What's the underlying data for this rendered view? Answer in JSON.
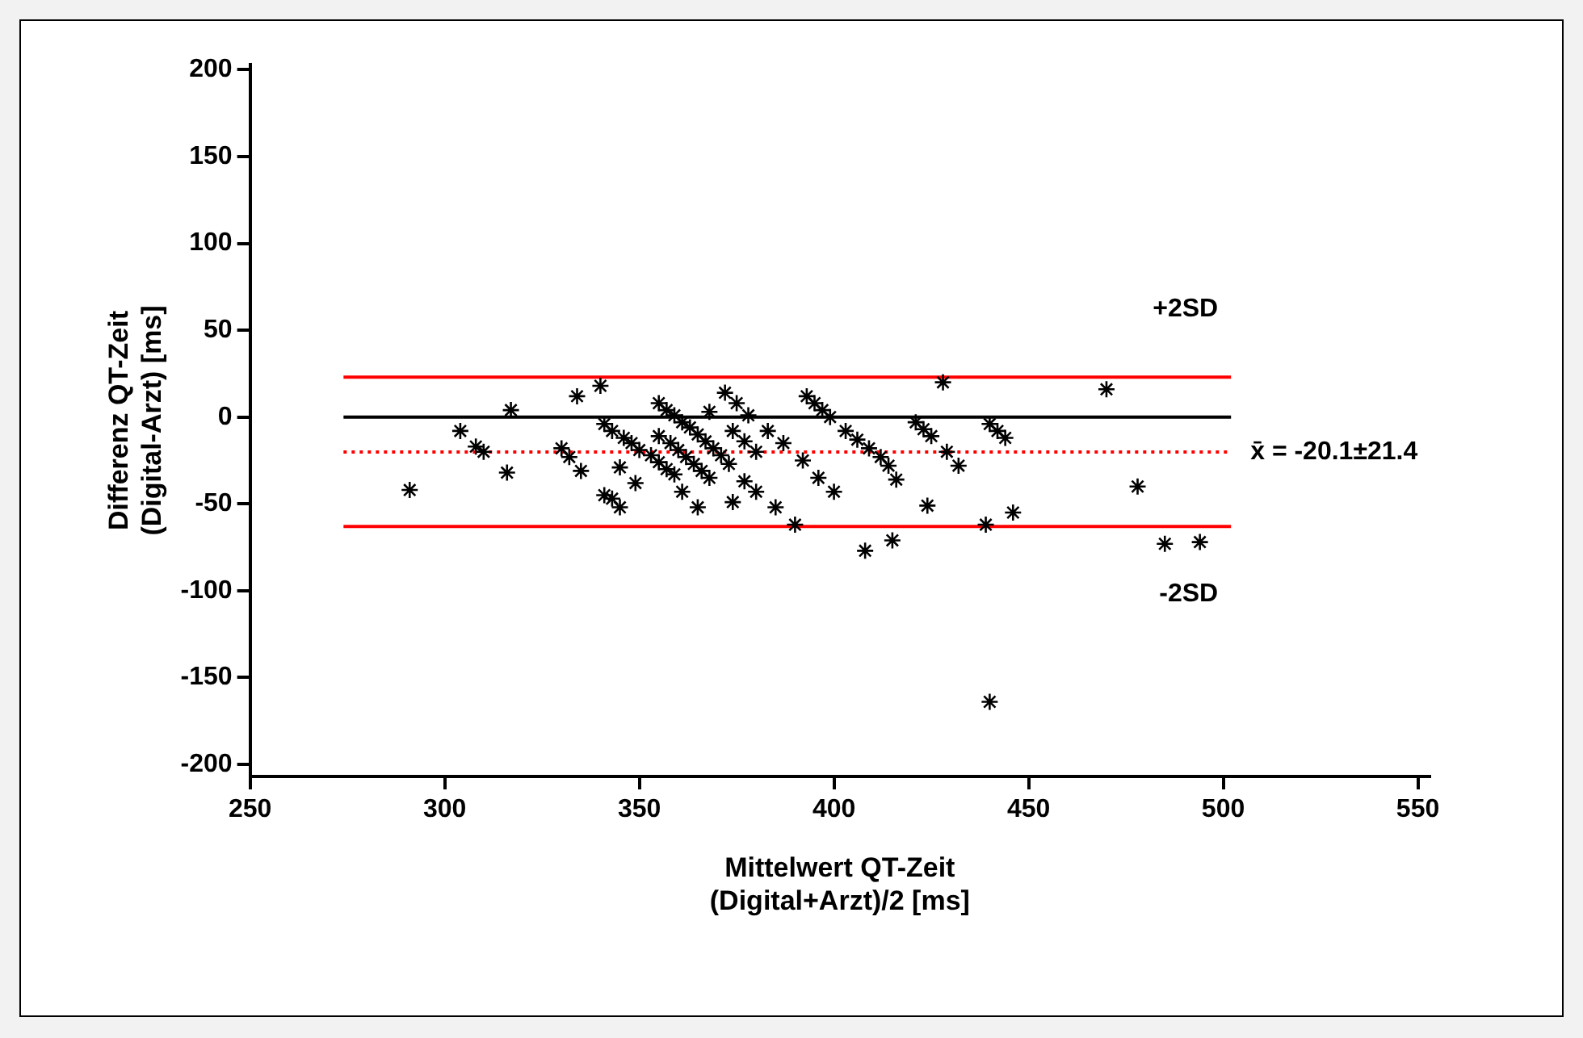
{
  "chart_data": {
    "type": "scatter",
    "xlabel": "Mittelwert QT-Zeit\n(Digital+Arzt)/2 [ms]",
    "ylabel": "Differenz QT-Zeit\n(Digital-Arzt) [ms]",
    "xlim": [
      250,
      553
    ],
    "ylim": [
      -207,
      203
    ],
    "xticks": [
      250,
      300,
      350,
      400,
      450,
      500,
      550
    ],
    "yticks": [
      -200,
      -150,
      -100,
      -50,
      0,
      50,
      100,
      150,
      200
    ],
    "grid": false,
    "legend": false,
    "series": [
      {
        "color": "#000000",
        "marker": "cross",
        "x": [
          291,
          304,
          308,
          310,
          317,
          316,
          334,
          340,
          330,
          332,
          335,
          345,
          349,
          341,
          343,
          345,
          341,
          343,
          346,
          348,
          350,
          353,
          355,
          357,
          359,
          355,
          357,
          359,
          361,
          363,
          365,
          367,
          369,
          371,
          373,
          355,
          358,
          360,
          362,
          364,
          366,
          368,
          361,
          365,
          374,
          368,
          372,
          375,
          378,
          383,
          387,
          392,
          396,
          400,
          374,
          377,
          380,
          377,
          380,
          385,
          390,
          393,
          395,
          397,
          399,
          403,
          406,
          409,
          412,
          414,
          416,
          408,
          415,
          421,
          423,
          425,
          429,
          432,
          428,
          424,
          440,
          442,
          444,
          439,
          446,
          440,
          470,
          478,
          485,
          494
        ],
        "values": [
          -42,
          -8,
          -17,
          -20,
          4,
          -32,
          12,
          18,
          -18,
          -23,
          -31,
          -29,
          -38,
          -45,
          -47,
          -52,
          -4,
          -8,
          -12,
          -15,
          -19,
          -22,
          -26,
          -30,
          -33,
          8,
          4,
          1,
          -3,
          -6,
          -10,
          -14,
          -18,
          -22,
          -27,
          -11,
          -15,
          -19,
          -23,
          -27,
          -31,
          -35,
          -43,
          -52,
          -49,
          3,
          14,
          8,
          1,
          -8,
          -15,
          -25,
          -35,
          -43,
          -8,
          -14,
          -20,
          -37,
          -43,
          -52,
          -62,
          12,
          8,
          4,
          0,
          -8,
          -13,
          -18,
          -23,
          -28,
          -36,
          -77,
          -71,
          -3,
          -7,
          -11,
          -20,
          -28,
          20,
          -51,
          -4,
          -8,
          -12,
          -62,
          -55,
          -164,
          16,
          -40,
          -73,
          -72
        ]
      },
      {
        "type": "line",
        "name": "+2SD",
        "color": "#ff0000",
        "line_style": "solid",
        "x": [
          274,
          502
        ],
        "values": [
          23,
          23
        ]
      },
      {
        "type": "line",
        "color": "#000000",
        "line_style": "solid",
        "x": [
          274,
          502
        ],
        "values": [
          0,
          0
        ]
      },
      {
        "type": "line",
        "name": "x̄ = -20.1±21.4",
        "color": "#ff0000",
        "line_style": "dotted",
        "x": [
          274,
          502
        ],
        "values": [
          -20.1,
          -20.1
        ]
      },
      {
        "type": "line",
        "name": "-2SD",
        "color": "#ff0000",
        "line_style": "solid",
        "x": [
          274,
          502
        ],
        "values": [
          -63,
          -63
        ]
      }
    ]
  }
}
